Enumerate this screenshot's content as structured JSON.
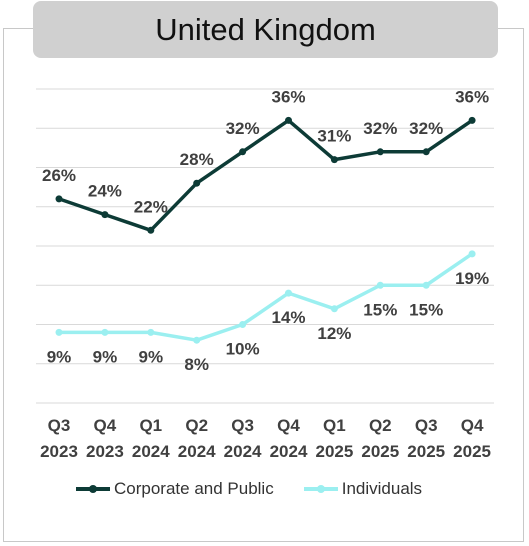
{
  "title": "United Kingdom",
  "legend": {
    "corporate": "Corporate and Public",
    "individuals": "Individuals"
  },
  "colors": {
    "corporate": "#0d3b36",
    "individuals": "#9beff0",
    "title_bg": "#d0d0d0",
    "gridline": "#d9d9d9",
    "label_text": "#404040"
  },
  "chart_data": {
    "type": "line",
    "title": "United Kingdom",
    "categories": [
      [
        "Q3",
        "2023"
      ],
      [
        "Q4",
        "2023"
      ],
      [
        "Q1",
        "2024"
      ],
      [
        "Q2",
        "2024"
      ],
      [
        "Q3",
        "2024"
      ],
      [
        "Q4",
        "2024"
      ],
      [
        "Q1",
        "2025"
      ],
      [
        "Q2",
        "2025"
      ],
      [
        "Q3",
        "2025"
      ],
      [
        "Q4",
        "2025"
      ]
    ],
    "series": [
      {
        "name": "Corporate and Public",
        "values": [
          26,
          24,
          22,
          28,
          32,
          36,
          31,
          32,
          32,
          36
        ],
        "labels": [
          "26%",
          "24%",
          "22%",
          "28%",
          "32%",
          "36%",
          "31%",
          "32%",
          "32%",
          "36%"
        ]
      },
      {
        "name": "Individuals",
        "values": [
          9,
          9,
          9,
          8,
          10,
          14,
          12,
          15,
          15,
          19
        ],
        "labels": [
          "9%",
          "9%",
          "9%",
          "8%",
          "10%",
          "14%",
          "12%",
          "15%",
          "15%",
          "19%"
        ]
      }
    ],
    "xlabel": "",
    "ylabel": "",
    "ylim": [
      0,
      40
    ],
    "grid": true,
    "legend_position": "bottom"
  }
}
